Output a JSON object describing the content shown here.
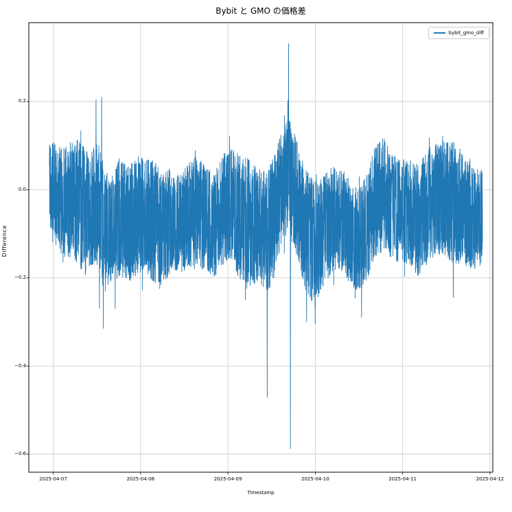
{
  "chart_data": {
    "type": "line",
    "title": "Bybit と GMO の価格差",
    "xlabel": "Timestamp",
    "ylabel": "Difference",
    "grid": true,
    "grid_color": "#c9c9c9",
    "spine_color": "#000000",
    "legend_position": "upper right",
    "series": [
      {
        "name": "bybit_gmo_diff",
        "color": "#1f77b4"
      }
    ],
    "x_ticks": [
      "2025-04-07",
      "2025-04-08",
      "2025-04-09",
      "2025-04-10",
      "2025-04-11",
      "2025-04-12"
    ],
    "y_ticks": [
      {
        "value": 0.2,
        "label": "0.2"
      },
      {
        "value": 0.0,
        "label": "0.0"
      },
      {
        "value": -0.2,
        "label": "−0.2"
      },
      {
        "value": -0.4,
        "label": "−0.4"
      },
      {
        "value": -0.6,
        "label": "−0.6"
      }
    ],
    "xlim_days": [
      -0.279,
      5.032
    ],
    "ylim": [
      -0.641,
      0.379
    ],
    "data_t_range": [
      -0.043,
      4.915
    ],
    "summary": "Dense 1-minute noise band of price differences, mostly between +0.1 and -0.2, mean near -0.05",
    "envelope_keyframes_t_mean_amp": [
      [
        -0.04,
        0.02,
        0.1
      ],
      [
        0.05,
        -0.02,
        0.12
      ],
      [
        0.15,
        -0.03,
        0.13
      ],
      [
        0.25,
        -0.02,
        0.14
      ],
      [
        0.35,
        -0.05,
        0.15
      ],
      [
        0.45,
        -0.04,
        0.13
      ],
      [
        0.5,
        -0.03,
        0.15
      ],
      [
        0.57,
        -0.08,
        0.15
      ],
      [
        0.65,
        -0.1,
        0.12
      ],
      [
        0.75,
        -0.06,
        0.14
      ],
      [
        0.85,
        -0.08,
        0.13
      ],
      [
        0.95,
        -0.06,
        0.14
      ],
      [
        1.05,
        -0.06,
        0.13
      ],
      [
        1.15,
        -0.07,
        0.14
      ],
      [
        1.25,
        -0.09,
        0.13
      ],
      [
        1.35,
        -0.07,
        0.12
      ],
      [
        1.45,
        -0.08,
        0.11
      ],
      [
        1.55,
        -0.06,
        0.12
      ],
      [
        1.65,
        -0.05,
        0.13
      ],
      [
        1.75,
        -0.07,
        0.12
      ],
      [
        1.85,
        -0.08,
        0.12
      ],
      [
        1.95,
        -0.04,
        0.13
      ],
      [
        2.05,
        -0.03,
        0.13
      ],
      [
        2.15,
        -0.07,
        0.15
      ],
      [
        2.25,
        -0.08,
        0.15
      ],
      [
        2.35,
        -0.08,
        0.13
      ],
      [
        2.45,
        -0.1,
        0.14
      ],
      [
        2.55,
        -0.05,
        0.14
      ],
      [
        2.62,
        0.01,
        0.13
      ],
      [
        2.7,
        0.04,
        0.13
      ],
      [
        2.78,
        -0.01,
        0.13
      ],
      [
        2.88,
        -0.09,
        0.14
      ],
      [
        2.98,
        -0.12,
        0.14
      ],
      [
        3.08,
        -0.1,
        0.13
      ],
      [
        3.18,
        -0.07,
        0.12
      ],
      [
        3.28,
        -0.06,
        0.12
      ],
      [
        3.38,
        -0.09,
        0.12
      ],
      [
        3.48,
        -0.12,
        0.12
      ],
      [
        3.58,
        -0.09,
        0.12
      ],
      [
        3.68,
        -0.03,
        0.13
      ],
      [
        3.78,
        -0.01,
        0.13
      ],
      [
        3.88,
        -0.04,
        0.12
      ],
      [
        3.98,
        -0.05,
        0.12
      ],
      [
        4.08,
        -0.05,
        0.12
      ],
      [
        4.18,
        -0.07,
        0.13
      ],
      [
        4.28,
        -0.04,
        0.13
      ],
      [
        4.38,
        -0.02,
        0.13
      ],
      [
        4.48,
        -0.02,
        0.13
      ],
      [
        4.58,
        -0.03,
        0.14
      ],
      [
        4.68,
        -0.04,
        0.13
      ],
      [
        4.78,
        -0.06,
        0.12
      ],
      [
        4.88,
        -0.07,
        0.11
      ],
      [
        4.92,
        -0.05,
        0.1
      ]
    ],
    "spikes_t_value": [
      [
        0.49,
        0.205
      ],
      [
        0.53,
        -0.27
      ],
      [
        0.555,
        0.21
      ],
      [
        0.575,
        -0.315
      ],
      [
        0.71,
        -0.27
      ],
      [
        1.22,
        -0.225
      ],
      [
        2.2,
        -0.25
      ],
      [
        2.45,
        -0.472
      ],
      [
        2.695,
        0.332
      ],
      [
        2.715,
        -0.588
      ],
      [
        2.9,
        -0.3
      ],
      [
        3.0,
        -0.305
      ],
      [
        3.53,
        -0.29
      ],
      [
        4.58,
        -0.245
      ]
    ],
    "noise_seed": 42,
    "n_points": 4000
  }
}
